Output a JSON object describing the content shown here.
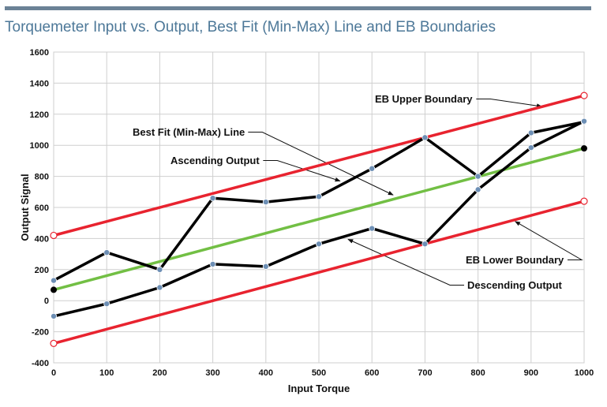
{
  "chart_data": {
    "type": "line",
    "title": "Torquemeter Input vs. Output, Best Fit (Min-Max) Line and EB Boundaries",
    "xlabel": "Input Torque",
    "ylabel": "Output Signal",
    "xlim": [
      0,
      1000
    ],
    "ylim": [
      -400,
      1600
    ],
    "grid": true,
    "x_ticks": [
      0,
      100,
      200,
      300,
      400,
      500,
      600,
      700,
      800,
      900,
      1000
    ],
    "y_ticks": [
      -400,
      -200,
      0,
      200,
      400,
      600,
      800,
      1000,
      1200,
      1400,
      1600
    ],
    "x_tick_labels": [
      "0",
      "100",
      "200",
      "300",
      "400",
      "500",
      "600",
      "700",
      "800",
      "900",
      "1000"
    ],
    "y_tick_labels": [
      "-400",
      "-200",
      "0",
      "200",
      "400",
      "600",
      "800",
      "1000",
      "1200",
      "1400",
      "1600"
    ],
    "series": [
      {
        "name": "EB Upper Boundary",
        "color": "#e8232f",
        "x": [
          0,
          1000
        ],
        "y": [
          420,
          1320
        ],
        "end_markers": "open-circle"
      },
      {
        "name": "EB Lower Boundary",
        "color": "#e8232f",
        "x": [
          0,
          1000
        ],
        "y": [
          -275,
          640
        ],
        "end_markers": "open-circle"
      },
      {
        "name": "Best Fit (Min-Max) Line",
        "color": "#72bf44",
        "x": [
          0,
          1000
        ],
        "y": [
          70,
          980
        ],
        "end_markers": "filled-black"
      },
      {
        "name": "Ascending Output",
        "color": "#000000",
        "x": [
          0,
          100,
          200,
          300,
          400,
          500,
          600,
          700,
          800,
          900,
          1000
        ],
        "y": [
          130,
          310,
          200,
          660,
          635,
          670,
          850,
          1050,
          800,
          1080,
          1150
        ],
        "marker_color": "#6d8fb5"
      },
      {
        "name": "Descending Output",
        "color": "#000000",
        "x": [
          0,
          100,
          200,
          300,
          400,
          500,
          600,
          700,
          800,
          900,
          1000
        ],
        "y": [
          -100,
          -20,
          85,
          235,
          220,
          365,
          465,
          365,
          715,
          985,
          1155
        ],
        "marker_color": "#6d8fb5"
      }
    ],
    "annotations": [
      {
        "text": "EB Upper Boundary",
        "points_to": {
          "x": 920,
          "y": 1250
        }
      },
      {
        "text": "Best Fit (Min-Max) Line",
        "points_to": {
          "x": 640,
          "y": 680
        }
      },
      {
        "text": "Ascending Output",
        "points_to": {
          "x": 540,
          "y": 770
        }
      },
      {
        "text": "EB Lower Boundary",
        "points_to": {
          "x": 870,
          "y": 510
        }
      },
      {
        "text": "Descending Output",
        "points_to": {
          "x": 555,
          "y": 395
        }
      }
    ]
  }
}
